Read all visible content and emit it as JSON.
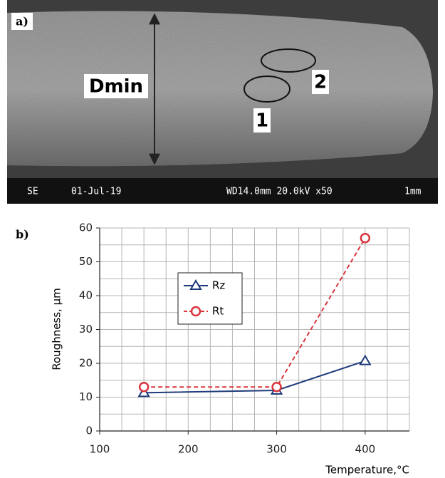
{
  "image": {
    "panel_label": "a)",
    "dimension_label": "Dmin",
    "region_labels": [
      "1",
      "2"
    ],
    "info_bar": [
      "SE",
      "01-Jul-19",
      "WD14.0mm 20.0kV x50",
      "1mm"
    ]
  },
  "chart_data": {
    "type": "line",
    "panel_label": "b)",
    "x_label": "Temperature,°C",
    "y_label": "Roughness, µm",
    "x": [
      150,
      300,
      400
    ],
    "series": [
      {
        "name": "Rz",
        "color": "#1f3a7a",
        "marker": "triangle",
        "dash": false,
        "values": [
          11.3,
          12,
          20.7
        ]
      },
      {
        "name": "Rt",
        "color": "#d9363e",
        "marker": "circle",
        "dash": true,
        "values": [
          13,
          13,
          57
        ]
      }
    ],
    "xlim": [
      100,
      450
    ],
    "ylim": [
      0,
      60
    ],
    "xticks": [
      100,
      200,
      300,
      400
    ],
    "yticks": [
      0,
      10,
      20,
      30,
      40,
      50,
      60
    ],
    "xminorticks": [
      100,
      125,
      150,
      175,
      200,
      225,
      250,
      275,
      300,
      325,
      350,
      375,
      400,
      425,
      450
    ],
    "yminorticks": [
      0,
      5,
      10,
      15,
      20,
      25,
      30,
      35,
      40,
      45,
      50,
      55,
      60
    ],
    "grid": true,
    "legend": "inside-left"
  }
}
